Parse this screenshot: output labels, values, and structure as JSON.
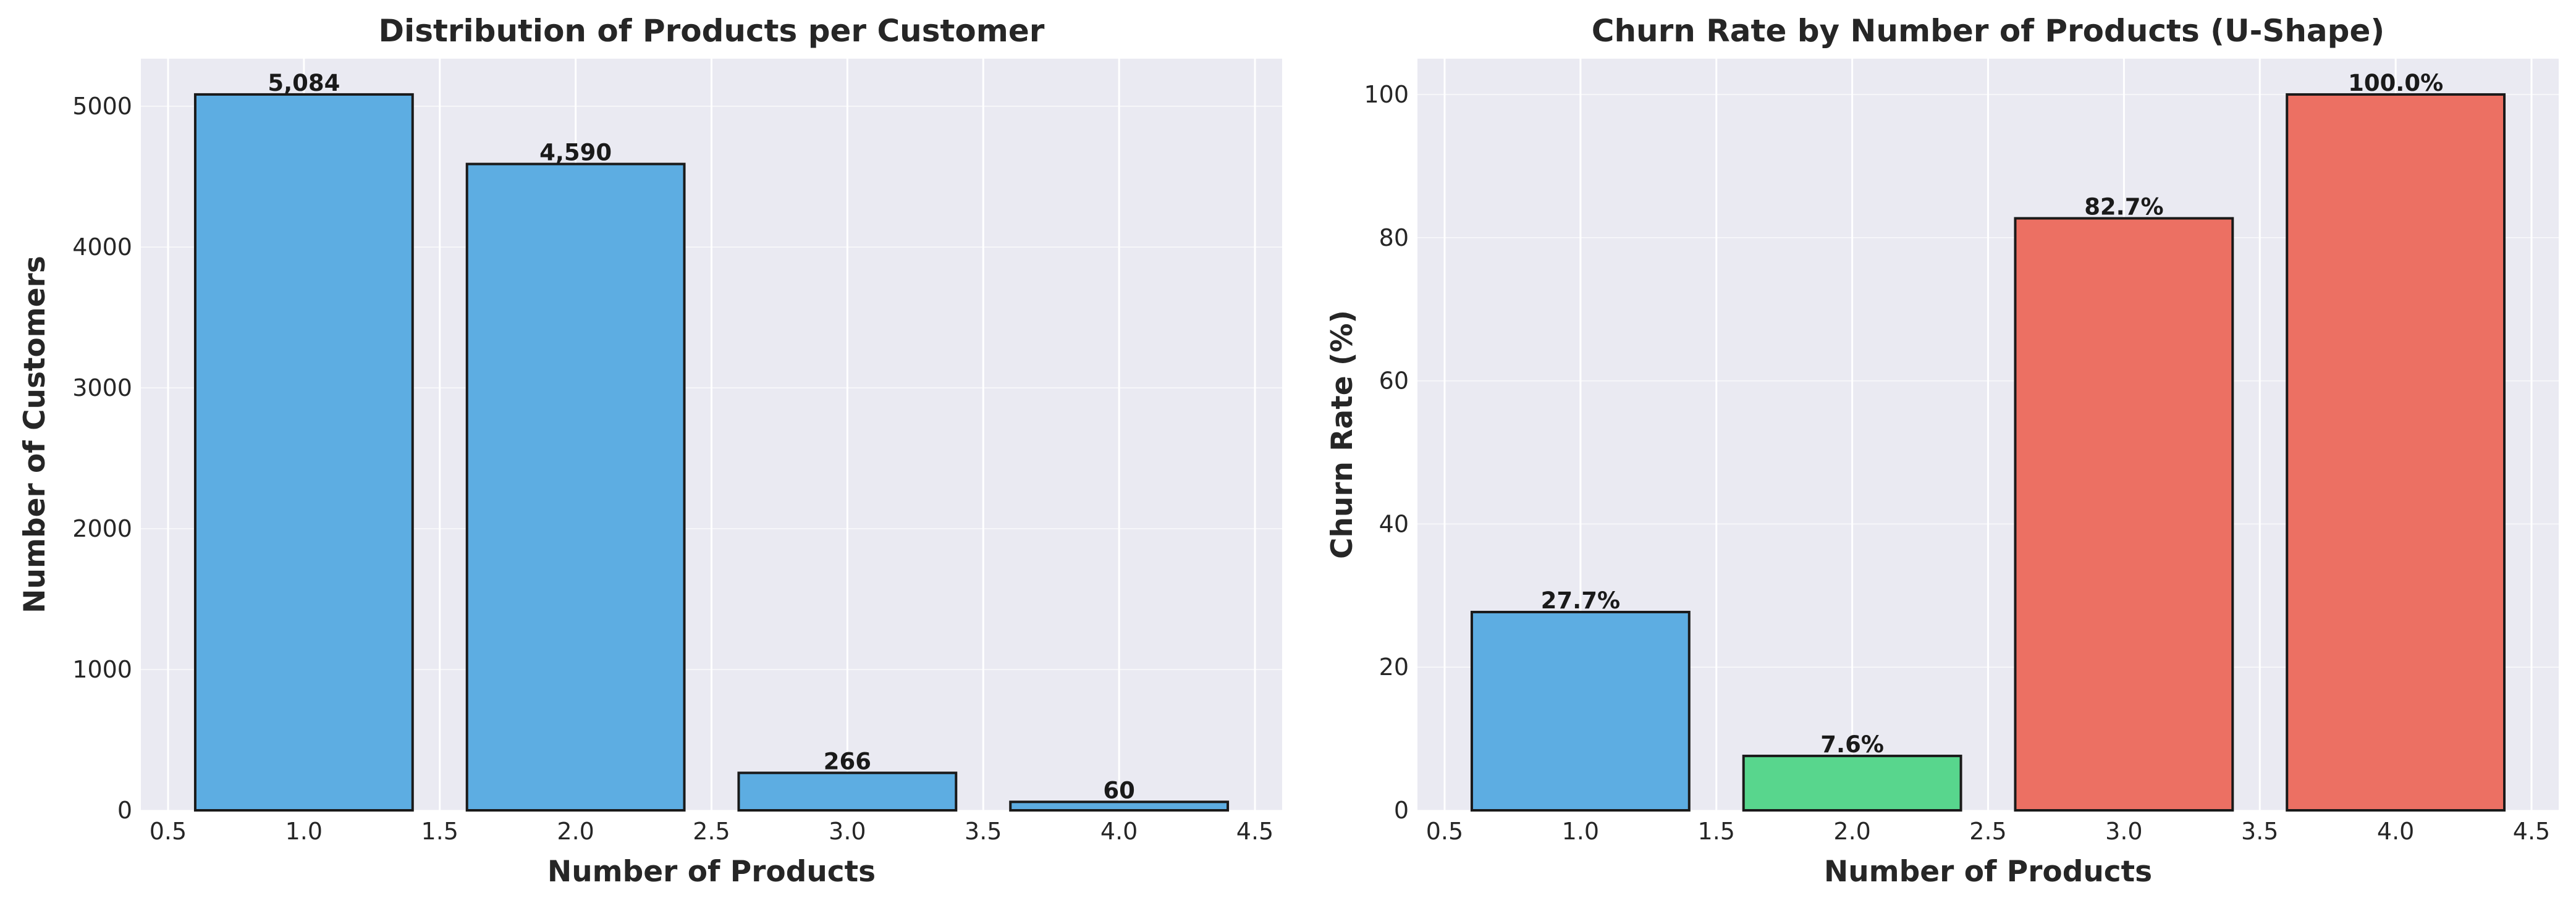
{
  "chart_data": [
    {
      "type": "bar",
      "title": "Distribution of Products per Customer",
      "xlabel": "Number of Products",
      "ylabel": "Number of Customers",
      "x": [
        1.0,
        2.0,
        3.0,
        4.0
      ],
      "values": [
        5084,
        4590,
        266,
        60
      ],
      "data_labels": [
        "5,084",
        "4,590",
        "266",
        "60"
      ],
      "colors": [
        "#5dade2",
        "#5dade2",
        "#5dade2",
        "#5dade2"
      ],
      "xlim": [
        0.4,
        4.6
      ],
      "ylim": [
        0,
        5338
      ],
      "xticks": [
        0.5,
        1.0,
        1.5,
        2.0,
        2.5,
        3.0,
        3.5,
        4.0,
        4.5
      ],
      "xtick_labels": [
        "0.5",
        "1.0",
        "1.5",
        "2.0",
        "2.5",
        "3.0",
        "3.5",
        "4.0",
        "4.5"
      ],
      "yticks": [
        0,
        1000,
        2000,
        3000,
        4000,
        5000
      ],
      "ytick_labels": [
        "0",
        "1000",
        "2000",
        "3000",
        "4000",
        "5000"
      ],
      "grid": true
    },
    {
      "type": "bar",
      "title": "Churn Rate by Number of Products (U-Shape)",
      "xlabel": "Number of Products",
      "ylabel": "Churn Rate (%)",
      "x": [
        1.0,
        2.0,
        3.0,
        4.0
      ],
      "values": [
        27.7,
        7.6,
        82.7,
        100.0
      ],
      "data_labels": [
        "27.7%",
        "7.6%",
        "82.7%",
        "100.0%"
      ],
      "colors": [
        "#5dade2",
        "#58d68d",
        "#ec7063",
        "#ec7063"
      ],
      "xlim": [
        0.4,
        4.6
      ],
      "ylim": [
        0,
        105
      ],
      "xticks": [
        0.5,
        1.0,
        1.5,
        2.0,
        2.5,
        3.0,
        3.5,
        4.0,
        4.5
      ],
      "xtick_labels": [
        "0.5",
        "1.0",
        "1.5",
        "2.0",
        "2.5",
        "3.0",
        "3.5",
        "4.0",
        "4.5"
      ],
      "yticks": [
        0,
        20,
        40,
        60,
        80,
        100
      ],
      "ytick_labels": [
        "0",
        "20",
        "40",
        "60",
        "80",
        "100"
      ],
      "grid": true
    }
  ]
}
